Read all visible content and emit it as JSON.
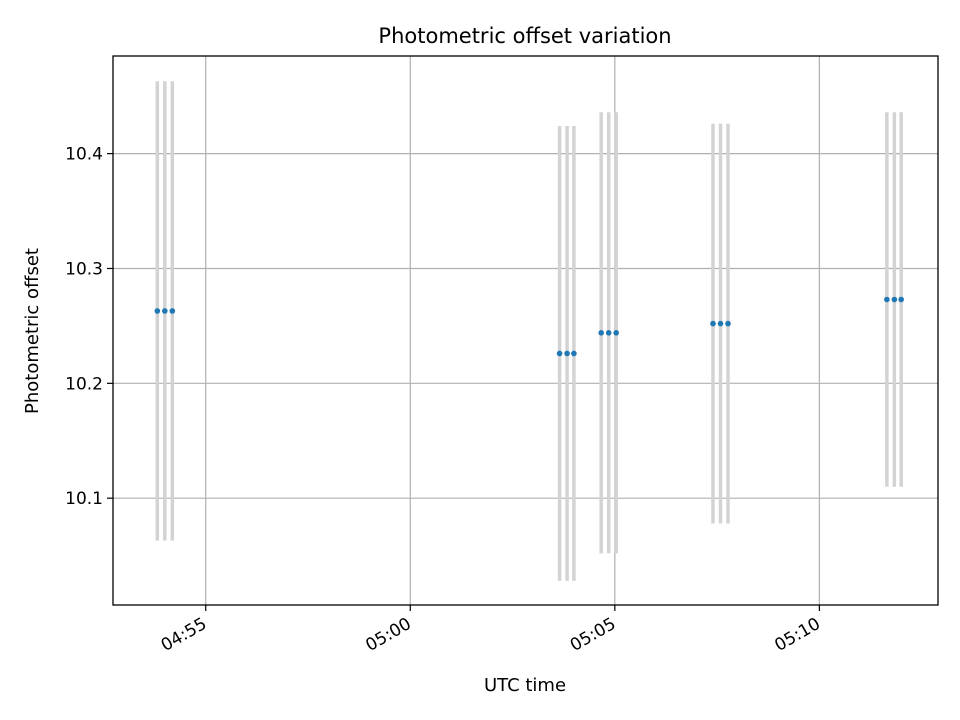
{
  "chart_data": {
    "type": "scatter",
    "title": "Photometric offset variation",
    "xlabel": "UTC time",
    "ylabel": "Photometric offset",
    "grid": true,
    "x_tick_labels": [
      "04:55",
      "05:00",
      "05:05",
      "05:10"
    ],
    "x_ticks": [
      "04:55",
      "05:00",
      "05:05",
      "05:10"
    ],
    "xlim": [
      "04:52:44",
      "05:12:54"
    ],
    "y_ticks": [
      10.1,
      10.2,
      10.3,
      10.4
    ],
    "y_tick_labels": [
      "10.1",
      "10.2",
      "10.3",
      "10.4"
    ],
    "ylim": [
      10.007,
      10.485
    ],
    "series": [
      {
        "marker_color": "#1f77b4",
        "error_bar_color": "#d3d3d3",
        "points": [
          {
            "x": "04:53:49",
            "y": 10.263,
            "ymin": 10.063,
            "ymax": 10.463
          },
          {
            "x": "04:54:00",
            "y": 10.263,
            "ymin": 10.063,
            "ymax": 10.463
          },
          {
            "x": "04:54:11",
            "y": 10.263,
            "ymin": 10.063,
            "ymax": 10.463
          },
          {
            "x": "05:03:39",
            "y": 10.226,
            "ymin": 10.028,
            "ymax": 10.424
          },
          {
            "x": "05:03:50",
            "y": 10.226,
            "ymin": 10.028,
            "ymax": 10.424
          },
          {
            "x": "05:04:00",
            "y": 10.226,
            "ymin": 10.028,
            "ymax": 10.424
          },
          {
            "x": "05:04:40",
            "y": 10.244,
            "ymin": 10.052,
            "ymax": 10.436
          },
          {
            "x": "05:04:51",
            "y": 10.244,
            "ymin": 10.052,
            "ymax": 10.436
          },
          {
            "x": "05:05:02",
            "y": 10.244,
            "ymin": 10.052,
            "ymax": 10.436
          },
          {
            "x": "05:07:24",
            "y": 10.252,
            "ymin": 10.078,
            "ymax": 10.426
          },
          {
            "x": "05:07:35",
            "y": 10.252,
            "ymin": 10.078,
            "ymax": 10.426
          },
          {
            "x": "05:07:46",
            "y": 10.252,
            "ymin": 10.078,
            "ymax": 10.426
          },
          {
            "x": "05:11:39",
            "y": 10.273,
            "ymin": 10.11,
            "ymax": 10.436
          },
          {
            "x": "05:11:50",
            "y": 10.273,
            "ymin": 10.11,
            "ymax": 10.436
          },
          {
            "x": "05:12:00",
            "y": 10.273,
            "ymin": 10.11,
            "ymax": 10.436
          }
        ]
      }
    ]
  }
}
